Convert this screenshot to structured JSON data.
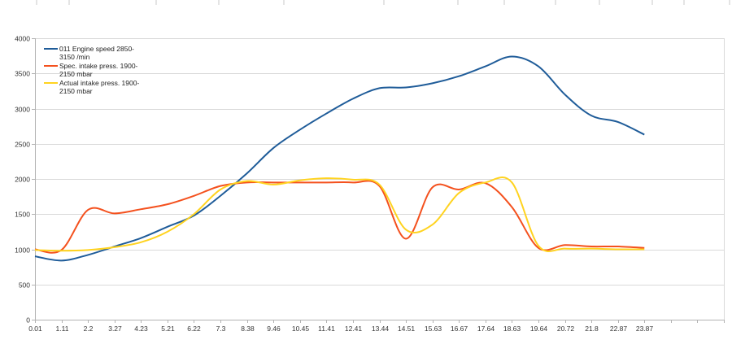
{
  "chart_data": {
    "type": "line",
    "title": "",
    "xlabel": "",
    "ylabel": "",
    "ylim": [
      0,
      4000
    ],
    "yticks": [
      0,
      500,
      1000,
      1500,
      2000,
      2500,
      3000,
      3500,
      4000
    ],
    "grid": true,
    "legend_position": "top-left inside",
    "categories": [
      "0.01",
      "1.11",
      "2.2",
      "3.27",
      "4.23",
      "5.21",
      "6.22",
      "7.3",
      "8.38",
      "9.46",
      "10.45",
      "11.41",
      "12.41",
      "13.44",
      "14.51",
      "15.63",
      "16.67",
      "17.64",
      "18.63",
      "19.64",
      "20.72",
      "21.8",
      "22.87",
      "23.87"
    ],
    "extra_empty_ticks": 2,
    "series": [
      {
        "name": "011 Engine speed 2850-\n3150  /min",
        "color": "#1f5c99",
        "values": [
          900,
          840,
          920,
          1040,
          1160,
          1320,
          1480,
          1760,
          2080,
          2440,
          2700,
          2930,
          3140,
          3290,
          3300,
          3360,
          3460,
          3600,
          3740,
          3600,
          3200,
          2900,
          2810,
          2630
        ]
      },
      {
        "name": " Spec. intake press.  1900-\n2150  mbar",
        "color": "#f4511e",
        "values": [
          1000,
          990,
          1560,
          1510,
          1570,
          1640,
          1760,
          1900,
          1950,
          1950,
          1950,
          1950,
          1950,
          1900,
          1150,
          1880,
          1850,
          1940,
          1600,
          1020,
          1060,
          1040,
          1040,
          1020
        ]
      },
      {
        "name": " Actual intake press.  1900-\n2150  mbar",
        "color": "#ffd320",
        "values": [
          990,
          980,
          990,
          1030,
          1100,
          1250,
          1500,
          1850,
          1970,
          1920,
          1980,
          2010,
          1990,
          1920,
          1280,
          1350,
          1800,
          1950,
          1950,
          1050,
          1010,
          1010,
          1000,
          1000
        ]
      }
    ]
  },
  "colors": {
    "grid": "#d9d9d9",
    "axis": "#b3b3b3",
    "text": "#333333"
  }
}
